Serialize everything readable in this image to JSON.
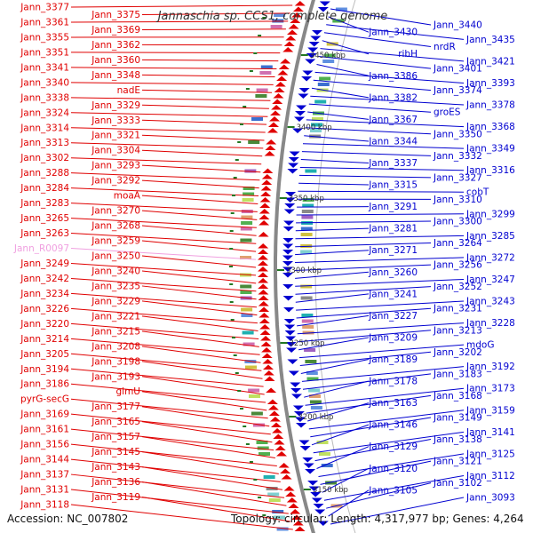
{
  "title": "Jannaschia sp. CCS1, complete genome",
  "accession": "Accession: NC_007802",
  "summary": "Topology: circular; Length: 4,317,977 bp; Genes: 4,264",
  "colors": {
    "forward": "#e00000",
    "reverse": "#0000d0",
    "pseudo": "#f0a0e0",
    "backbone": "#888888",
    "scale": "#227722"
  },
  "scale_ticks": [
    {
      "label": "3450 kbp"
    },
    {
      "label": "3400 kbp"
    },
    {
      "label": "3350 kbp"
    },
    {
      "label": "3300 kbp"
    },
    {
      "label": "3250 kbp"
    },
    {
      "label": "3200 kbp"
    },
    {
      "label": "3150 kbp"
    }
  ],
  "left_labels": [
    "Jann_3377",
    "Jann_3375",
    "Jann_3361",
    "Jann_3369",
    "Jann_3355",
    "Jann_3362",
    "Jann_3351",
    "Jann_3360",
    "Jann_3341",
    "Jann_3348",
    "Jann_3340",
    "nadE",
    "Jann_3338",
    "Jann_3329",
    "Jann_3324",
    "Jann_3333",
    "Jann_3314",
    "Jann_3321",
    "Jann_3313",
    "Jann_3304",
    "Jann_3302",
    "Jann_3293",
    "Jann_3288",
    "Jann_3292",
    "Jann_3284",
    "moaA",
    "Jann_3283",
    "Jann_3270",
    "Jann_3265",
    "Jann_3268",
    "Jann_3263",
    "Jann_3259",
    "Jann_R0097",
    "Jann_3250",
    "Jann_3249",
    "Jann_3240",
    "Jann_3242",
    "Jann_3235",
    "Jann_3234",
    "Jann_3229",
    "Jann_3226",
    "Jann_3221",
    "Jann_3220",
    "Jann_3215",
    "Jann_3214",
    "Jann_3208",
    "Jann_3205",
    "Jann_3198",
    "Jann_3194",
    "Jann_3193",
    "Jann_3186",
    "glmU",
    "pyrG-secG",
    "Jann_3177",
    "Jann_3169",
    "Jann_3165",
    "Jann_3161",
    "Jann_3157",
    "Jann_3156",
    "Jann_3145",
    "Jann_3144",
    "Jann_3143",
    "Jann_3137",
    "Jann_3136",
    "Jann_3131",
    "Jann_3119",
    "Jann_3118"
  ],
  "right_labels": [
    "Jann_3440",
    "Jann_3430",
    "Jann_3435",
    "nrdR",
    "ribH",
    "Jann_3421",
    "Jann_3401",
    "Jann_3386",
    "Jann_3393",
    "Jann_3374",
    "Jann_3382",
    "Jann_3378",
    "groES",
    "Jann_3367",
    "Jann_3368",
    "Jann_3350",
    "Jann_3344",
    "Jann_3349",
    "Jann_3332",
    "Jann_3337",
    "Jann_3316",
    "Jann_3327",
    "Jann_3315",
    "cobT",
    "Jann_3310",
    "Jann_3291",
    "Jann_3299",
    "Jann_3300",
    "Jann_3281",
    "Jann_3285",
    "Jann_3264",
    "Jann_3271",
    "Jann_3272",
    "Jann_3256",
    "Jann_3260",
    "Jann_3247",
    "Jann_3252",
    "Jann_3241",
    "Jann_3243",
    "Jann_3231",
    "Jann_3227",
    "Jann_3228",
    "Jann_3213",
    "Jann_3209",
    "mdoG",
    "Jann_3202",
    "Jann_3189",
    "Jann_3192",
    "Jann_3183",
    "Jann_3178",
    "Jann_3173",
    "Jann_3168",
    "Jann_3163",
    "Jann_3159",
    "Jann_3149",
    "Jann_3146",
    "Jann_3141",
    "Jann_3138",
    "Jann_3129",
    "Jann_3125",
    "Jann_3121",
    "Jann_3120",
    "Jann_3112",
    "Jann_3102",
    "Jann_3105",
    "Jann_3093"
  ]
}
